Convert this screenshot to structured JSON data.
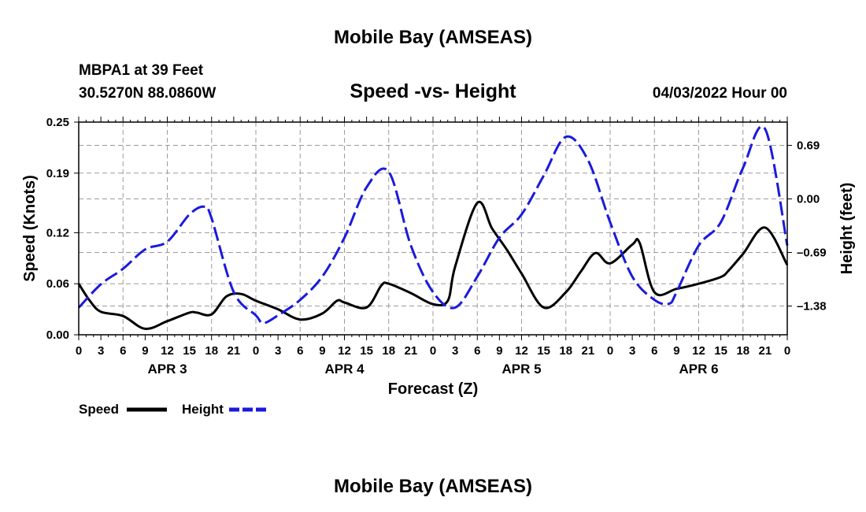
{
  "header": {
    "title": "Mobile Bay (AMSEAS)",
    "station_line": "MBPA1 at 39 Feet",
    "coords": "30.5270N  88.0860W",
    "chart_title": "Speed -vs- Height",
    "datetime": "04/03/2022 Hour 00"
  },
  "footer": {
    "title_repeat": "Mobile Bay (AMSEAS)"
  },
  "legend": {
    "speed_label": "Speed",
    "height_label": "Height"
  },
  "colors": {
    "speed": "#000000",
    "height": "#1a1adc",
    "grid": "#9a9a9a"
  },
  "chart_data": {
    "type": "line",
    "title": "Speed -vs- Height",
    "xlabel": "Forecast (Z)",
    "ylabel": "Speed (Knots)",
    "y2label": "Height (feet)",
    "x_range_hours": [
      0,
      96
    ],
    "x_tick_labels": [
      "0",
      "3",
      "6",
      "9",
      "12",
      "15",
      "18",
      "21",
      "0",
      "3",
      "6",
      "9",
      "12",
      "15",
      "18",
      "21",
      "0",
      "3",
      "6",
      "9",
      "12",
      "15",
      "18",
      "21",
      "0",
      "3",
      "6",
      "9",
      "12",
      "15",
      "18",
      "21",
      "0"
    ],
    "day_labels": [
      {
        "label": "APR 3",
        "hour": 12
      },
      {
        "label": "APR 4",
        "hour": 36
      },
      {
        "label": "APR 5",
        "hour": 60
      },
      {
        "label": "APR 6",
        "hour": 84
      }
    ],
    "ylim": [
      0,
      0.25
    ],
    "y_ticks": [
      "0.00",
      "0.06",
      "0.12",
      "0.19",
      "0.25"
    ],
    "y2lim": [
      -1.75,
      0.99
    ],
    "y2_ticks": [
      {
        "label": "0.69",
        "value": 0.69
      },
      {
        "label": "0.00",
        "value": 0.0
      },
      {
        "label": "-0.69",
        "value": -0.69
      },
      {
        "label": "-1.38",
        "value": -1.38
      }
    ],
    "grid": true,
    "legend_position": "bottom-left",
    "series": [
      {
        "name": "Speed",
        "axis": "left",
        "style": "solid",
        "x": [
          0,
          1.5,
          3,
          6,
          9,
          12,
          15,
          16,
          18,
          20,
          22,
          24,
          27,
          30,
          33,
          35,
          36,
          39,
          41,
          42,
          45,
          48,
          50,
          51,
          54,
          56,
          58,
          60,
          63,
          66,
          68,
          70,
          72,
          75,
          76,
          78,
          81,
          84,
          87,
          88,
          90,
          93,
          96
        ],
        "y": [
          0.06,
          0.04,
          0.027,
          0.022,
          0.007,
          0.016,
          0.026,
          0.026,
          0.024,
          0.045,
          0.048,
          0.04,
          0.03,
          0.018,
          0.025,
          0.04,
          0.038,
          0.032,
          0.058,
          0.06,
          0.049,
          0.036,
          0.04,
          0.08,
          0.155,
          0.125,
          0.1,
          0.072,
          0.032,
          0.05,
          0.074,
          0.096,
          0.084,
          0.106,
          0.108,
          0.05,
          0.054,
          0.06,
          0.068,
          0.075,
          0.095,
          0.126,
          0.082
        ]
      },
      {
        "name": "Height",
        "axis": "right",
        "style": "dashed",
        "x": [
          0,
          3,
          6,
          9,
          12,
          15,
          17,
          18,
          21,
          24,
          25,
          27,
          30,
          33,
          36,
          39,
          42,
          45,
          48,
          51,
          54,
          57,
          60,
          63,
          66,
          69,
          72,
          75,
          78,
          80,
          81,
          84,
          87,
          90,
          93,
          96
        ],
        "y": [
          -1.4,
          -1.1,
          -0.9,
          -0.65,
          -0.55,
          -0.2,
          -0.1,
          -0.25,
          -1.2,
          -1.5,
          -1.6,
          -1.5,
          -1.3,
          -1.0,
          -0.5,
          0.15,
          0.35,
          -0.6,
          -1.2,
          -1.4,
          -1.0,
          -0.5,
          -0.2,
          0.3,
          0.8,
          0.5,
          -0.3,
          -1.0,
          -1.3,
          -1.35,
          -1.2,
          -0.6,
          -0.3,
          0.4,
          0.9,
          -0.6
        ]
      }
    ]
  }
}
